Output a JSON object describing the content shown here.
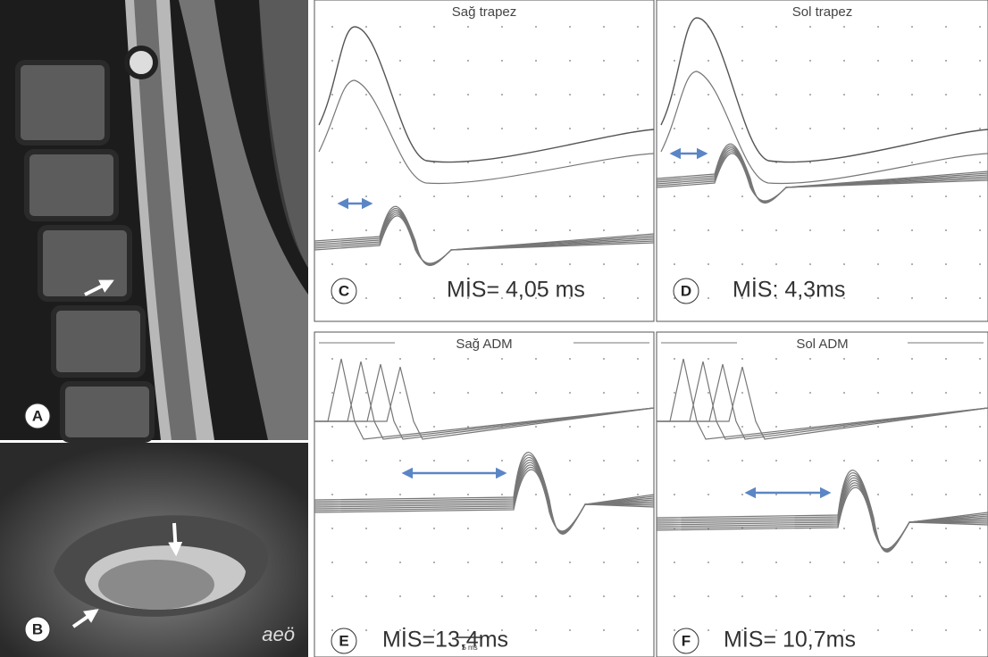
{
  "images": {
    "a": {
      "label": "A"
    },
    "b": {
      "label": "B",
      "watermark": "aeö"
    }
  },
  "recordings": [
    {
      "label": "C",
      "title": "Sağ trapez",
      "latency": "MİS= 4,05 ms"
    },
    {
      "label": "D",
      "title": "Sol trapez",
      "latency": "MİS: 4,3ms"
    },
    {
      "label": "E",
      "title": "Sağ ADM",
      "latency": "MİS=13,4ms"
    },
    {
      "label": "F",
      "title": "Sol ADM",
      "latency": "MİS= 10,7ms"
    }
  ],
  "scale_bar": "5 ms"
}
